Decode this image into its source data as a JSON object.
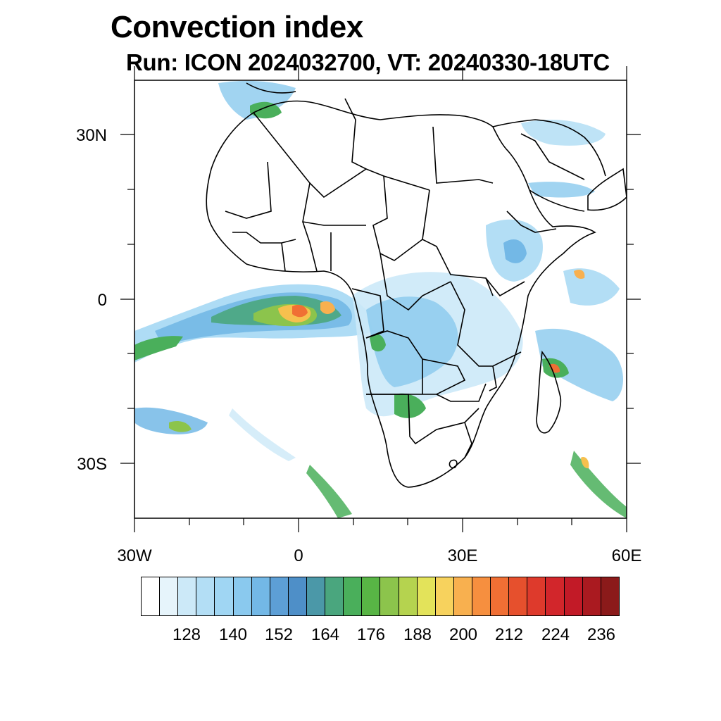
{
  "title": "Convection index",
  "subtitle": "Run: ICON 2024032700,  VT: 20240330-18UTC",
  "map": {
    "lon_range": [
      -30,
      60
    ],
    "lat_range": [
      -40,
      40
    ],
    "lat_labels": [
      "30N",
      "0",
      "30S"
    ],
    "lon_labels": [
      "30W",
      "0",
      "30E",
      "60E"
    ]
  },
  "colorbar": {
    "colors": [
      "#ffffff",
      "#e6f4fb",
      "#cce9f8",
      "#b3def5",
      "#a0d6f3",
      "#8ac9ee",
      "#73b8e6",
      "#5d9fd6",
      "#4e8fc8",
      "#4b98a8",
      "#4aa67e",
      "#4aaf5b",
      "#58b545",
      "#8cc44c",
      "#b5d34f",
      "#e3e35a",
      "#f7d25d",
      "#f8b04f",
      "#f68f3f",
      "#f06f34",
      "#e6502d",
      "#de3a2c",
      "#d2262b",
      "#c21a27",
      "#aa1a20",
      "#8b1a1a"
    ],
    "labels": [
      "128",
      "140",
      "152",
      "164",
      "176",
      "188",
      "200",
      "212",
      "224",
      "236"
    ]
  }
}
